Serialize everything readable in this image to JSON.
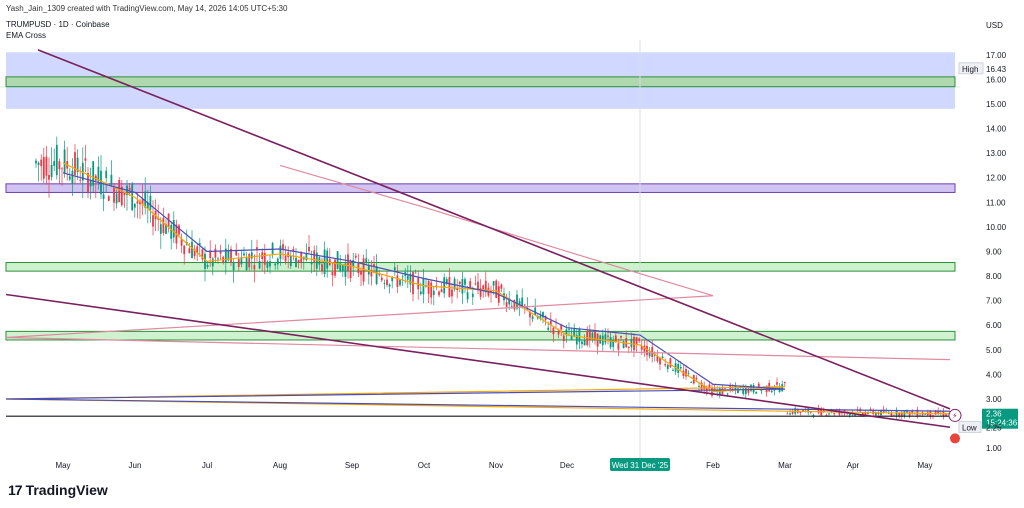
{
  "header": {
    "attribution": "Yash_Jain_1309 created with TradingView.com, May 14, 2026 14:05 UTC+5:30",
    "symbol_line": "TRUMPUSD · 1D · Coinbase",
    "indicator": "EMA Cross"
  },
  "footer": {
    "brand_name": "TradingView",
    "logo_icon": "tradingview-logo-icon"
  },
  "chart_data": {
    "type": "line",
    "currency_label": "USD",
    "y_ticks": [
      "17.00",
      "16.00",
      "15.00",
      "14.00",
      "13.00",
      "12.00",
      "11.00",
      "10.00",
      "9.00",
      "8.00",
      "7.00",
      "6.00",
      "5.00",
      "4.00",
      "3.00",
      "2.00",
      "1.00"
    ],
    "x_ticks": [
      "May",
      "Jun",
      "Jul",
      "Aug",
      "Sep",
      "Oct",
      "Nov",
      "Dec",
      "Wed 31 Dec '25",
      "Feb",
      "Mar",
      "Apr",
      "May"
    ],
    "ylim": [
      0.6,
      17.6
    ],
    "price_label": {
      "value": "2.36",
      "countdown": "15:24:36",
      "color": "#089981"
    },
    "high_label": {
      "label": "High",
      "value": "16.43"
    },
    "low_label": {
      "label": "Low",
      "value": "2.25"
    },
    "zones": [
      {
        "low": 14.8,
        "high": 17.1,
        "color": "#bcc8ff"
      },
      {
        "low": 15.7,
        "high": 16.1,
        "color": "#a8d8a0"
      },
      {
        "low": 11.4,
        "high": 11.75,
        "color": "#c9b8f0"
      },
      {
        "low": 8.2,
        "high": 8.55,
        "color": "#c6eec6"
      },
      {
        "low": 5.4,
        "high": 5.75,
        "color": "#c6eec6"
      }
    ],
    "support_level": 2.3,
    "trendlines": [
      {
        "from": [
          "May",
          17.2
        ],
        "to": [
          "May '26",
          2.6
        ],
        "color": "#7b1f5e"
      },
      {
        "from": [
          "Apr",
          7.25
        ],
        "to": [
          "May '26",
          1.85
        ],
        "color": "#7b1f5e"
      }
    ],
    "colors": {
      "up": "#089981",
      "down": "#f23645",
      "ema_fast": "#f7a600",
      "ema_slow": "#4a4fb8",
      "sma_long": "#e08aa0"
    },
    "series": [
      {
        "x": [
          "May",
          "Jun",
          "Jul",
          "Aug",
          "Sep",
          "Oct",
          "Nov",
          "Dec",
          "Jan",
          "Feb",
          "Mar",
          "Apr",
          "May '26"
        ],
        "values": [
          12.6,
          11.2,
          8.6,
          8.9,
          8.4,
          7.6,
          7.4,
          5.6,
          5.2,
          3.3,
          3.5,
          3.0,
          2.4
        ]
      },
      {
        "x": [
          "May",
          "Jun",
          "Jul",
          "Aug",
          "Sep",
          "Oct",
          "Nov",
          "Dec",
          "Jan",
          "Feb",
          "Mar",
          "Apr",
          "May '26"
        ],
        "values": [
          12.2,
          11.4,
          9.0,
          9.1,
          8.6,
          7.9,
          7.3,
          5.9,
          5.6,
          3.6,
          3.4,
          3.0,
          2.5
        ]
      },
      {
        "x": [
          "Aug",
          "Oct",
          "Dec",
          "Feb",
          "Apr",
          "May '26"
        ],
        "values": [
          12.5,
          10.8,
          9.0,
          7.2,
          5.5,
          4.6
        ]
      }
    ]
  }
}
